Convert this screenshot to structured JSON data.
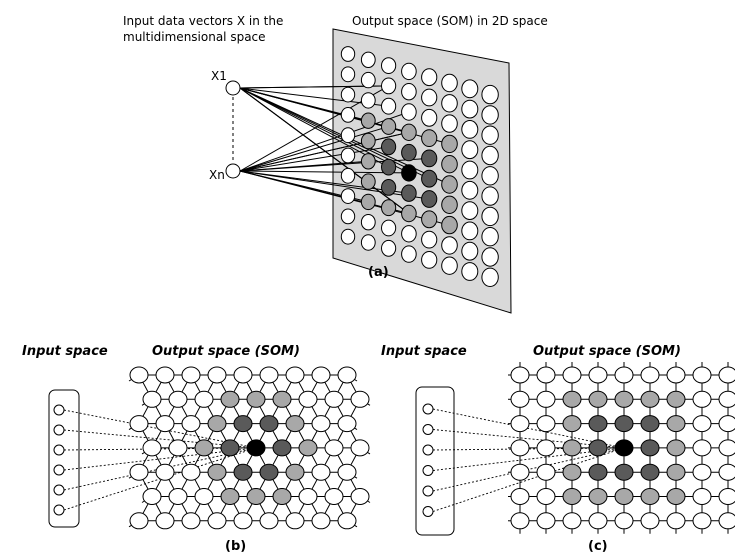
{
  "panel_a": {
    "input_label_line1": "Input data vectors X in the",
    "input_label_line2": "multidimensional space",
    "output_label": "Output space (SOM) in 2D space",
    "x1_label": "X1",
    "xn_label": "Xn",
    "caption": "(a)",
    "grid": {
      "rows": 10,
      "cols": 8,
      "bmu": [
        5,
        3
      ],
      "ring1_color": "#5a5a5a",
      "ring2_color": "#a8a8a8",
      "bmu_color": "#000000",
      "plane_color": "#d9d9d9"
    }
  },
  "panel_b": {
    "input_label": "Input space",
    "output_label": "Output space (SOM)",
    "caption": "(b)",
    "grid": {
      "rows": 7,
      "cols": 9,
      "bmu": [
        3,
        4
      ],
      "topology": "hexagonal"
    }
  },
  "panel_c": {
    "input_label": "Input space",
    "output_label": "Output space (SOM)",
    "caption": "(c)",
    "grid": {
      "rows": 7,
      "cols": 9,
      "bmu": [
        3,
        4
      ],
      "topology": "rectangular"
    }
  }
}
